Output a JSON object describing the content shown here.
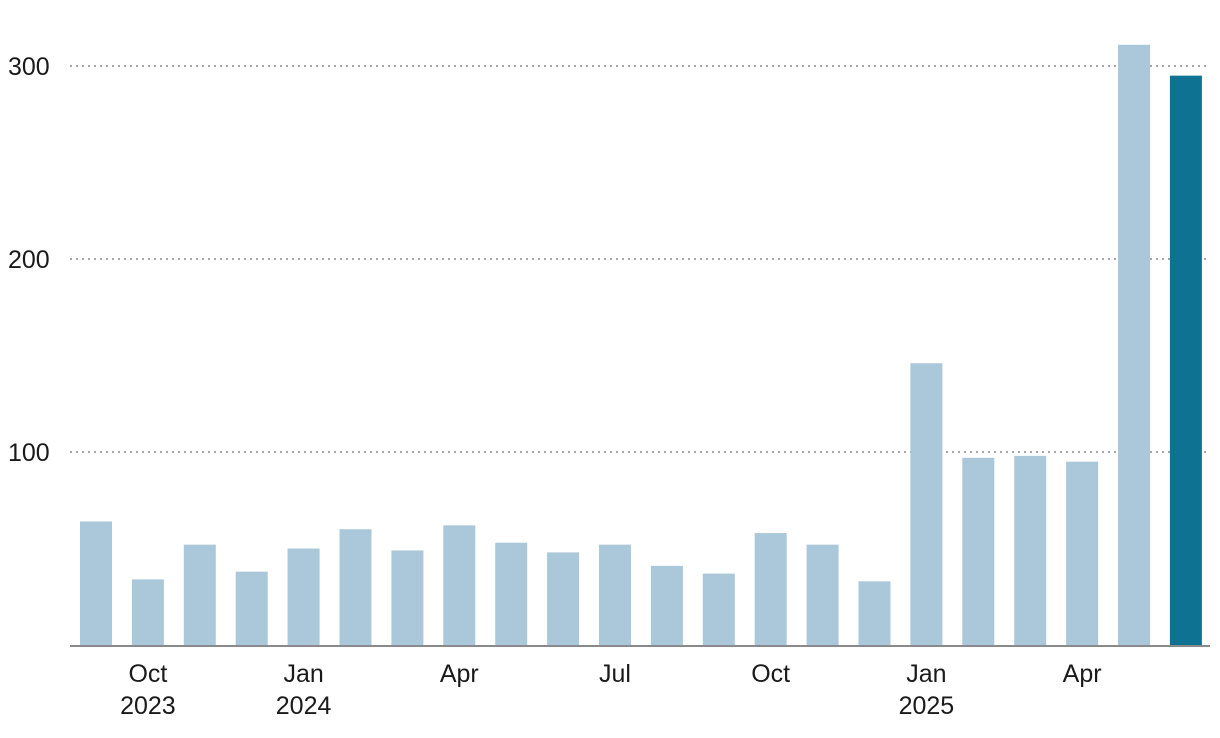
{
  "chart_data": {
    "type": "bar",
    "categories": [
      "2023-09",
      "2023-10",
      "2023-11",
      "2023-12",
      "2024-01",
      "2024-02",
      "2024-03",
      "2024-04",
      "2024-05",
      "2024-06",
      "2024-07",
      "2024-08",
      "2024-09",
      "2024-10",
      "2024-11",
      "2024-12",
      "2025-01",
      "2025-02",
      "2025-03",
      "2025-04",
      "2025-05",
      "2025-06"
    ],
    "values": [
      64,
      34,
      52,
      38,
      50,
      60,
      49,
      62,
      53,
      48,
      52,
      41,
      37,
      58,
      52,
      33,
      146,
      97,
      98,
      95,
      311,
      295
    ],
    "highlight_index": 21,
    "colors": {
      "bar": "#abc8da",
      "highlight": "#0e7292"
    },
    "ylim": [
      0,
      330
    ],
    "yticks": [
      {
        "value": 100,
        "label": "100"
      },
      {
        "value": 200,
        "label": "200"
      },
      {
        "value": 300,
        "label": "300"
      }
    ],
    "xticks": [
      {
        "index": 1,
        "label": "Oct",
        "year": "2023"
      },
      {
        "index": 4,
        "label": "Jan",
        "year": "2024"
      },
      {
        "index": 7,
        "label": "Apr",
        "year": ""
      },
      {
        "index": 10,
        "label": "Jul",
        "year": ""
      },
      {
        "index": 13,
        "label": "Oct",
        "year": ""
      },
      {
        "index": 16,
        "label": "Jan",
        "year": "2025"
      },
      {
        "index": 19,
        "label": "Apr",
        "year": ""
      }
    ],
    "grid": true,
    "title": "",
    "xlabel": "",
    "ylabel": ""
  }
}
